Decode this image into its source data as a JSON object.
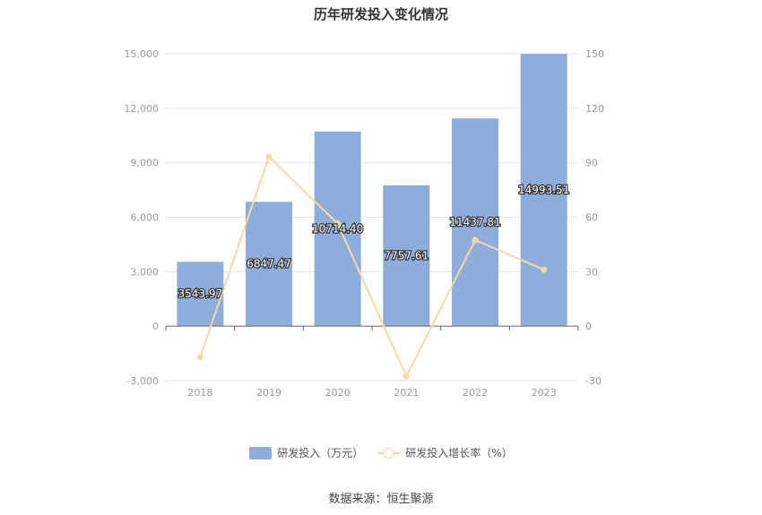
{
  "title": "历年研发投入变化情况",
  "source_text": "数据来源：恒生聚源",
  "colors": {
    "bar": "#8eadda",
    "line": "#f7d9a5",
    "axis": "#666666",
    "grid": "#e6e6e6"
  },
  "chart_data": {
    "type": "bar",
    "title": "历年研发投入变化情况",
    "categories": [
      "2018",
      "2019",
      "2020",
      "2021",
      "2022",
      "2023"
    ],
    "series": [
      {
        "name": "研发投入（万元）",
        "type": "bar",
        "axis": "left",
        "values": [
          3543.97,
          6847.47,
          10714.4,
          7757.61,
          11437.81,
          14993.51
        ],
        "labels": [
          "3543.97",
          "6847.47",
          "10714.40",
          "7757.61",
          "11437.81",
          "14993.51"
        ]
      },
      {
        "name": "研发投入增长率（%）",
        "type": "line",
        "axis": "right",
        "values": [
          -17,
          93.2,
          56.5,
          -27.6,
          47.4,
          31.1
        ]
      }
    ],
    "y_left": {
      "min": -3000,
      "max": 15000,
      "ticks": [
        -3000,
        0,
        3000,
        6000,
        9000,
        12000,
        15000
      ],
      "tick_labels": [
        "-3,000",
        "0",
        "3,000",
        "6,000",
        "9,000",
        "12,000",
        "15,000"
      ]
    },
    "y_right": {
      "min": -30,
      "max": 150,
      "ticks": [
        -30,
        0,
        30,
        60,
        90,
        120,
        150
      ],
      "tick_labels": [
        "-30",
        "0",
        "30",
        "60",
        "90",
        "120",
        "150"
      ]
    },
    "grid": true,
    "legend_position": "bottom"
  }
}
